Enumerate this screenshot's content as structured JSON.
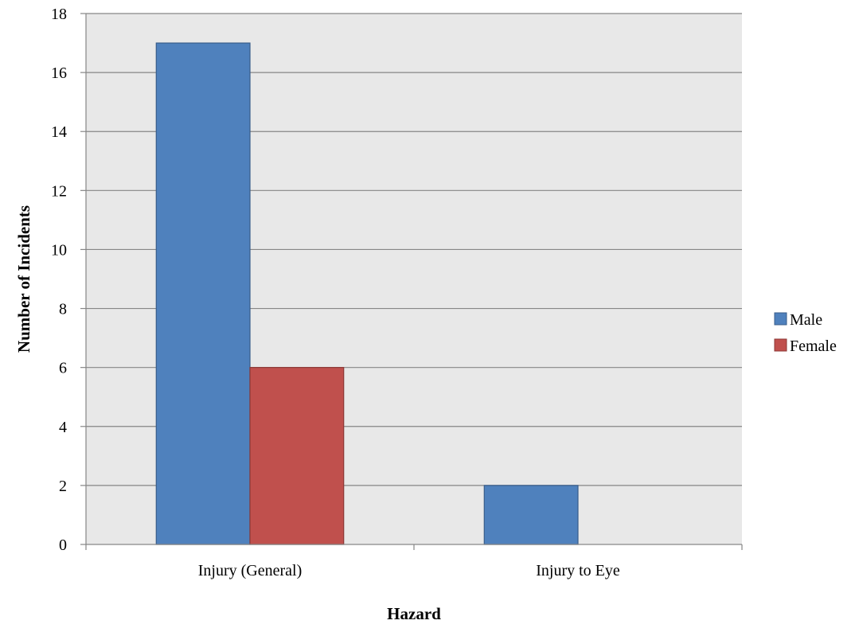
{
  "chart_data": {
    "type": "bar",
    "title": "",
    "xlabel": "Hazard",
    "ylabel": "Number of Incidents",
    "categories": [
      "Injury (General)",
      "Injury to Eye"
    ],
    "series": [
      {
        "name": "Male",
        "values": [
          17,
          2
        ],
        "color": "#4f81bd",
        "stroke": "#385d8a"
      },
      {
        "name": "Female",
        "values": [
          6,
          0
        ],
        "color": "#c0504d",
        "stroke": "#8c3836"
      }
    ],
    "ylim": [
      0,
      18
    ],
    "y_ticks": [
      0,
      2,
      4,
      6,
      8,
      10,
      12,
      14,
      16,
      18
    ],
    "grid": true,
    "plot_background": "#e8e8e8",
    "gridline_color": "#868686",
    "legend_position": "right"
  }
}
